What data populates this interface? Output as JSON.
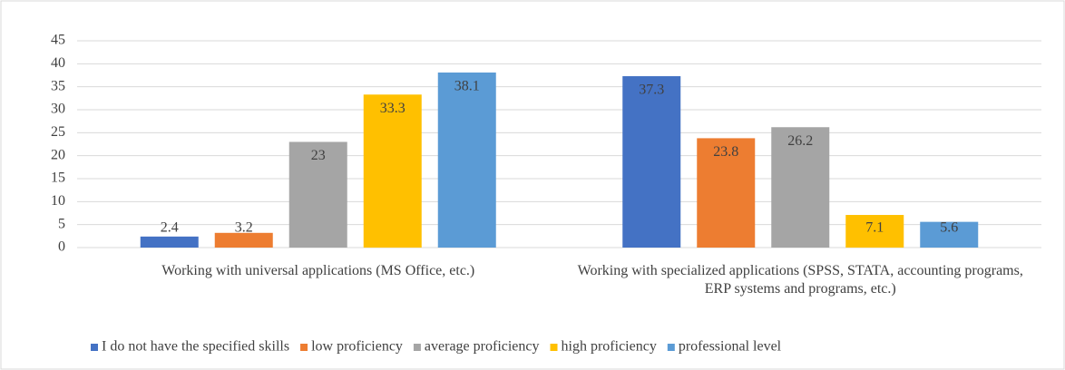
{
  "chart_data": {
    "type": "bar",
    "categories": [
      "Working with universal applications (MS Office, etc.)",
      "Working with specialized applications (SPSS, STATA, accounting programs, ERP systems and programs, etc.)"
    ],
    "series": [
      {
        "name": "I do not have the specified skills",
        "color": "#4472c4",
        "values": [
          2.4,
          37.3
        ]
      },
      {
        "name": "low proficiency",
        "color": "#ed7d31",
        "values": [
          3.2,
          23.8
        ]
      },
      {
        "name": "average proficiency",
        "color": "#a5a5a5",
        "values": [
          23,
          26.2
        ]
      },
      {
        "name": "high proficiency",
        "color": "#ffc000",
        "values": [
          33.3,
          7.1
        ]
      },
      {
        "name": "professional level",
        "color": "#5b9bd5",
        "values": [
          38.1,
          5.6
        ]
      }
    ],
    "ylim": [
      0,
      45
    ],
    "yticks": [
      0,
      5,
      10,
      15,
      20,
      25,
      30,
      35,
      40,
      45
    ],
    "grid": true,
    "legend": "bottom"
  }
}
